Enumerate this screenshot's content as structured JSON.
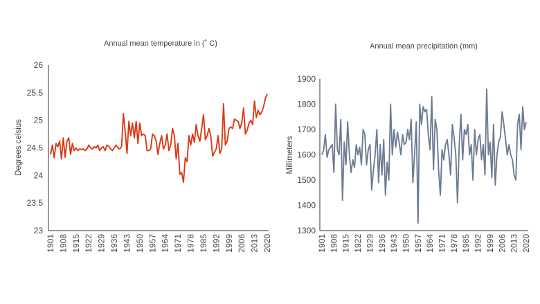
{
  "chart_data": [
    {
      "type": "line",
      "title": "Annual mean temperature in (˚ C)",
      "ylabel": "Degrees celsius",
      "xlabel": "",
      "x_range": [
        1901,
        2020
      ],
      "ylim": [
        23,
        26
      ],
      "yticks": [
        "26",
        "25.5",
        "25",
        "24.5",
        "24",
        "23.5",
        "23"
      ],
      "xticks": [
        "1901",
        "1908",
        "1915",
        "1922",
        "1929",
        "1936",
        "1943",
        "1950",
        "1957",
        "1964",
        "1971",
        "1978",
        "1985",
        "1992",
        "1999",
        "2006",
        "2013",
        "2020"
      ],
      "color": "#d93a16",
      "grid": false,
      "series": [
        {
          "start_year": 1901,
          "values": [
            24.38,
            24.55,
            24.32,
            24.58,
            24.52,
            24.62,
            24.3,
            24.68,
            24.33,
            24.62,
            24.68,
            24.38,
            24.58,
            24.45,
            24.5,
            24.45,
            24.48,
            24.47,
            24.48,
            24.45,
            24.48,
            24.55,
            24.5,
            24.48,
            24.52,
            24.5,
            24.55,
            24.45,
            24.5,
            24.52,
            24.45,
            24.55,
            24.53,
            24.48,
            24.45,
            24.5,
            24.55,
            24.5,
            24.48,
            24.52,
            25.12,
            24.8,
            24.4,
            24.98,
            24.72,
            24.95,
            24.68,
            24.98,
            24.58,
            24.95,
            24.72,
            24.75,
            24.72,
            24.45,
            24.45,
            24.48,
            24.75,
            24.72,
            24.62,
            24.38,
            24.58,
            24.72,
            24.48,
            24.55,
            24.75,
            24.45,
            24.55,
            24.85,
            24.72,
            24.3,
            24.58,
            24.02,
            24.05,
            23.88,
            24.32,
            24.25,
            24.72,
            24.55,
            24.75,
            24.6,
            24.92,
            24.72,
            24.62,
            24.85,
            25.1,
            24.65,
            24.72,
            24.85,
            24.72,
            24.35,
            24.42,
            24.48,
            24.72,
            24.4,
            24.48,
            25.3,
            24.55,
            24.62,
            24.85,
            24.88,
            24.85,
            25.02,
            25.0,
            24.98,
            24.85,
            24.95,
            25.22,
            24.75,
            24.82,
            24.95,
            25.0,
            24.92,
            25.35,
            25.05,
            25.18,
            25.1,
            25.15,
            25.25,
            25.4,
            25.48
          ]
        }
      ]
    },
    {
      "type": "line",
      "title": "Annual mean precipitation (mm)",
      "ylabel": "Millimeters",
      "xlabel": "",
      "x_range": [
        1901,
        2020
      ],
      "ylim": [
        1300,
        1900
      ],
      "yticks": [
        "1900",
        "1800",
        "1700",
        "1600",
        "1500",
        "1400",
        "1300"
      ],
      "xticks": [
        "1901",
        "1908",
        "1915",
        "1922",
        "1929",
        "1936",
        "1943",
        "1950",
        "1957",
        "1964",
        "1971",
        "1978",
        "1985",
        "1992",
        "1999",
        "2006",
        "2013",
        "2020"
      ],
      "color": "#6e7b94",
      "grid": false,
      "series": [
        {
          "start_year": 1901,
          "values": [
            1600,
            1620,
            1680,
            1590,
            1620,
            1630,
            1640,
            1530,
            1800,
            1620,
            1600,
            1740,
            1420,
            1650,
            1560,
            1730,
            1600,
            1530,
            1580,
            1550,
            1640,
            1600,
            1630,
            1560,
            1700,
            1680,
            1560,
            1620,
            1640,
            1460,
            1540,
            1600,
            1700,
            1490,
            1640,
            1520,
            1660,
            1440,
            1570,
            1500,
            1800,
            1600,
            1700,
            1630,
            1690,
            1650,
            1600,
            1680,
            1640,
            1650,
            1700,
            1660,
            1740,
            1490,
            1600,
            1730,
            1330,
            1800,
            1720,
            1790,
            1770,
            1780,
            1680,
            1620,
            1830,
            1540,
            1740,
            1700,
            1540,
            1440,
            1620,
            1580,
            1640,
            1660,
            1600,
            1520,
            1720,
            1670,
            1600,
            1410,
            1640,
            1760,
            1580,
            1700,
            1680,
            1720,
            1600,
            1640,
            1500,
            1700,
            1600,
            1660,
            1680,
            1580,
            1640,
            1520,
            1860,
            1600,
            1650,
            1510,
            1720,
            1480,
            1600,
            1650,
            1670,
            1770,
            1720,
            1660,
            1600,
            1640,
            1600,
            1580,
            1520,
            1500,
            1720,
            1760,
            1620,
            1790,
            1700,
            1730
          ]
        }
      ]
    }
  ]
}
